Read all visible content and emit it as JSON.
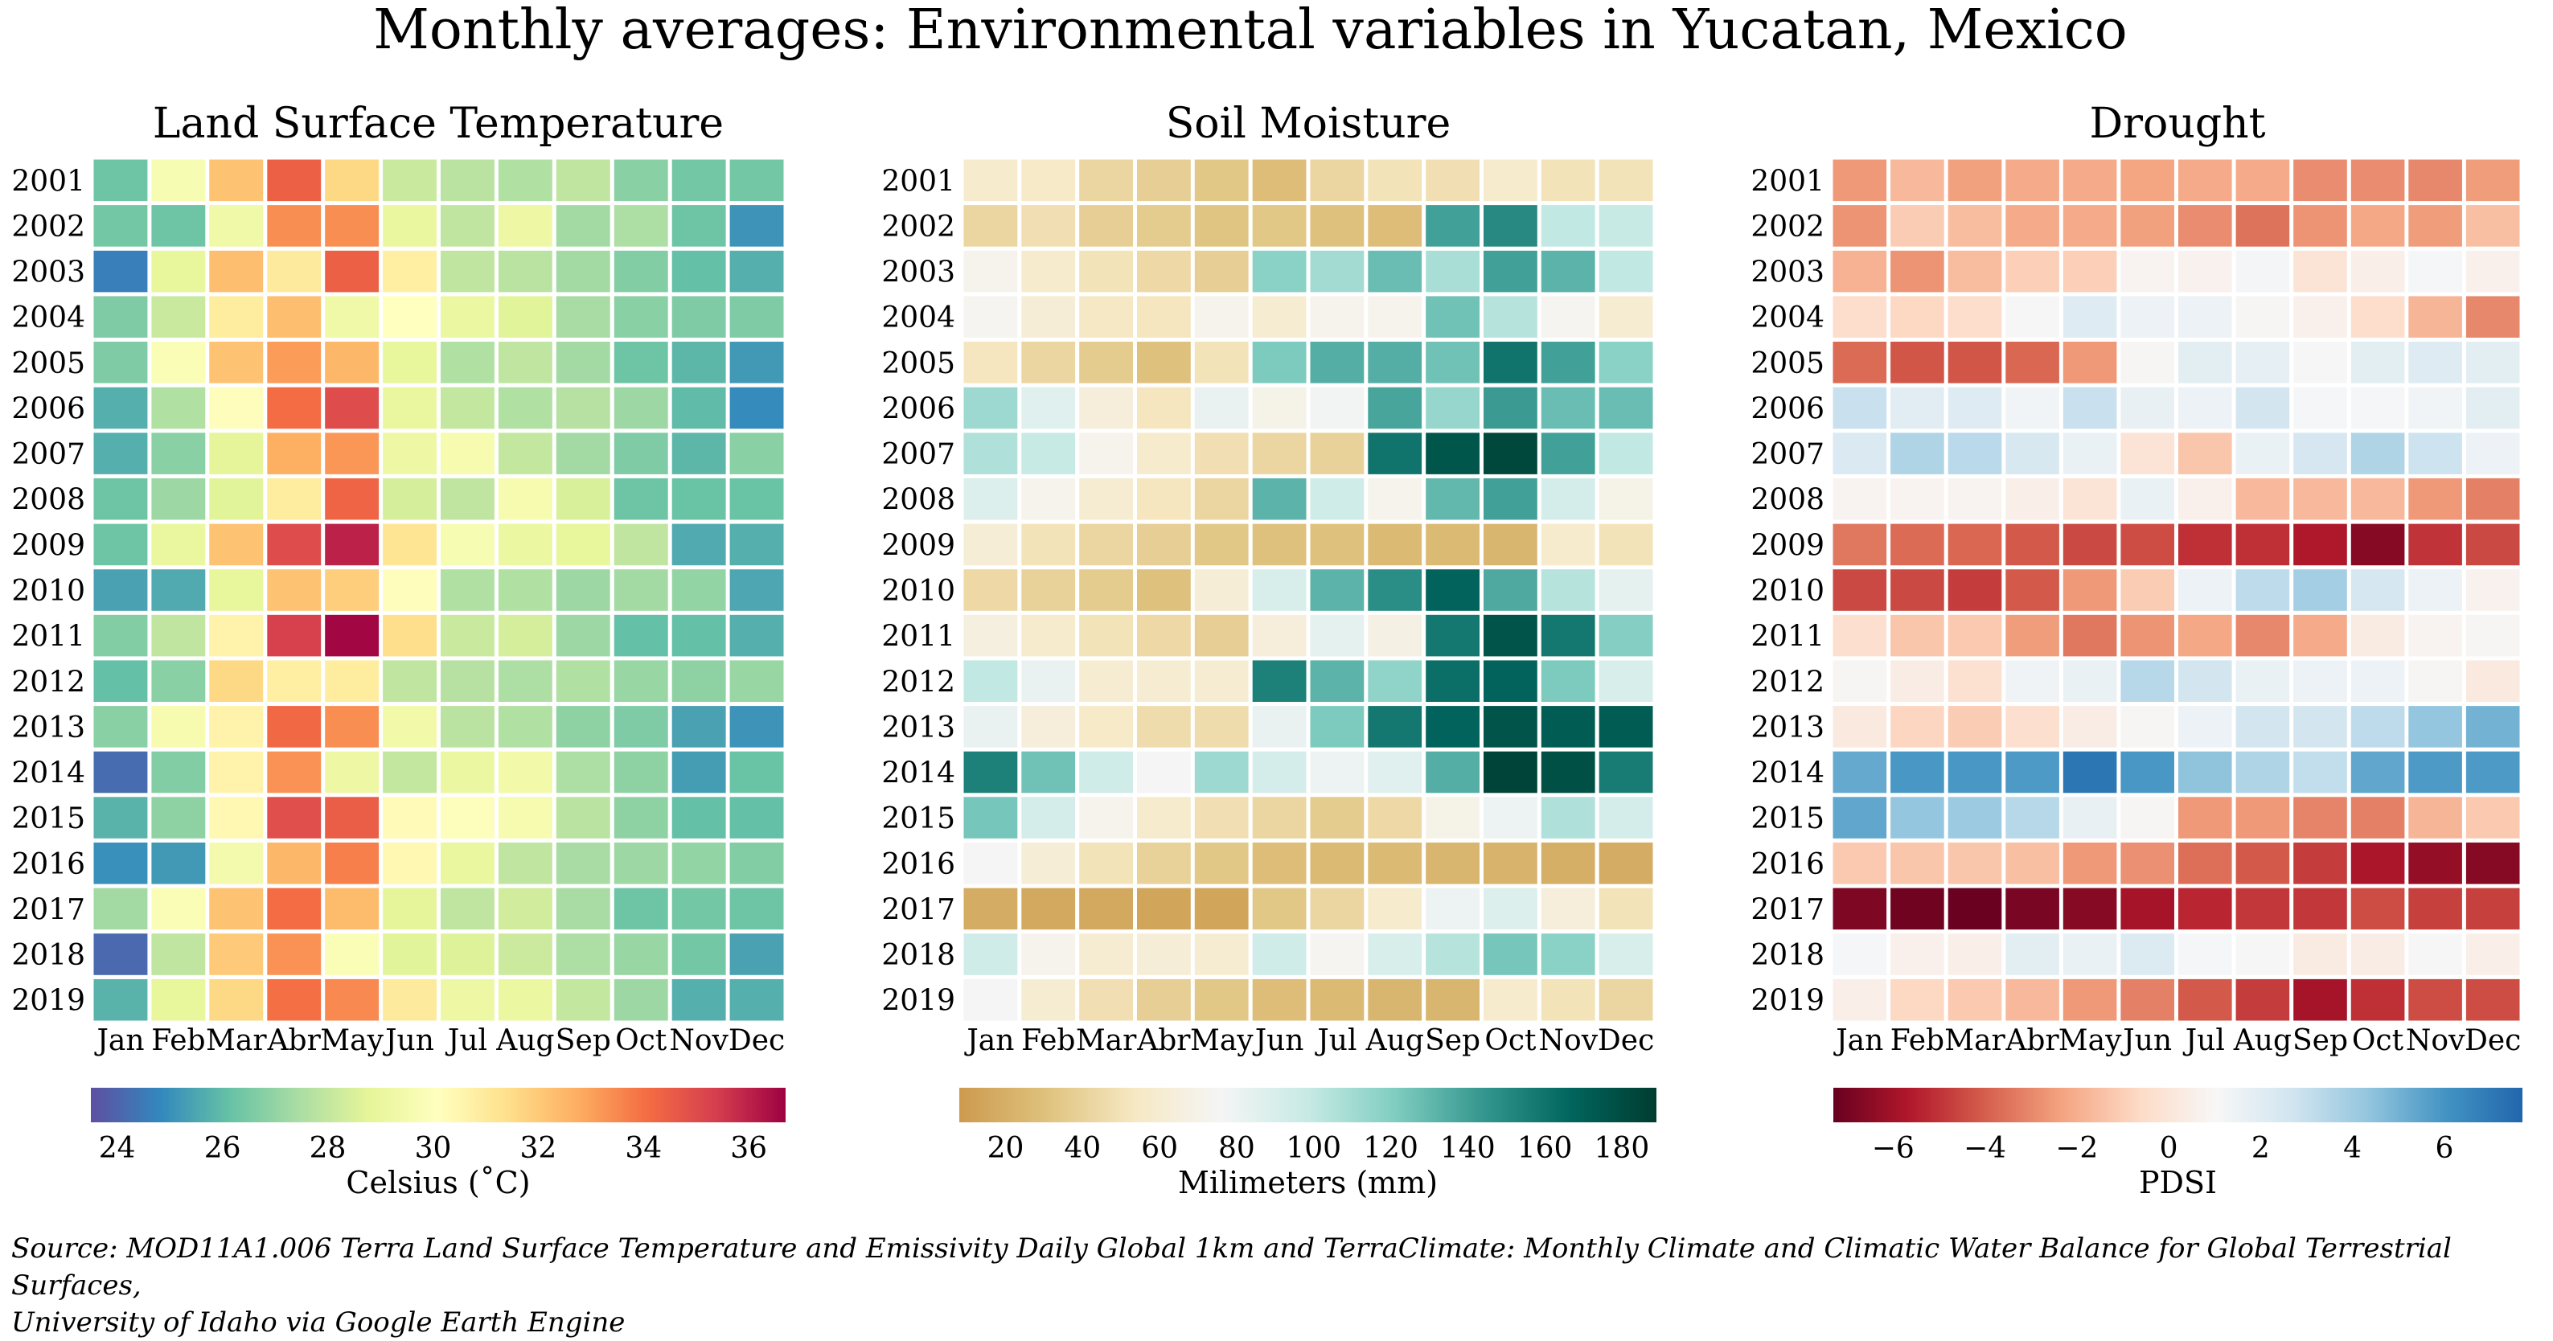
{
  "chart_data": {
    "title": "Monthly averages: Environmental variables in Yucatan, Mexico",
    "source": "Source: MOD11A1.006 Terra Land Surface Temperature and Emissivity Daily Global 1km and TerraClimate: Monthly Climate and Climatic Water Balance for Global Terrestrial Surfaces, University of Idaho via Google Earth Engine",
    "source_lines": [
      "Source: MOD11A1.006 Terra Land Surface Temperature and Emissivity Daily Global 1km and TerraClimate: Monthly Climate and Climatic Water Balance for Global Terrestrial Surfaces,",
      "University of Idaho via Google Earth Engine"
    ],
    "panels": [
      {
        "type": "heatmap",
        "title": "Land Surface Temperature",
        "colorbar_label": "Celsius (˚C)",
        "colormap": "Spectral_r",
        "colormap_stops": [
          "#5e4fa2",
          "#3288bd",
          "#66c2a5",
          "#abdda4",
          "#e6f598",
          "#ffffbf",
          "#fee08b",
          "#fdae61",
          "#f46d43",
          "#d53e4f",
          "#9e0142"
        ],
        "vmin": 23.5,
        "vmax": 36.7,
        "colorbar_ticks": [
          24,
          26,
          28,
          30,
          32,
          34,
          36
        ],
        "colorbar_ticklabels": [
          "24",
          "26",
          "28",
          "30",
          "32",
          "34",
          "36"
        ],
        "colorbar_range": [
          23.5,
          36.7
        ],
        "x_labels": [
          "Jan",
          "Feb",
          "Mar",
          "Abr",
          "May",
          "Jun",
          "Jul",
          "Aug",
          "Sep",
          "Oct",
          "Nov",
          "Dec"
        ],
        "y_labels": [
          "2001",
          "2002",
          "2003",
          "2004",
          "2005",
          "2006",
          "2007",
          "2008",
          "2009",
          "2010",
          "2011",
          "2012",
          "2013",
          "2014",
          "2015",
          "2016",
          "2017",
          "2018",
          "2019"
        ],
        "values": [
          [
            26.3,
            29.7,
            32.2,
            34.4,
            31.6,
            28.1,
            27.8,
            27.6,
            27.9,
            26.8,
            26.4,
            26.4
          ],
          [
            26.4,
            26.3,
            29.3,
            33.4,
            33.4,
            29.0,
            27.9,
            29.2,
            27.3,
            27.5,
            26.3,
            25.1
          ],
          [
            24.6,
            28.9,
            32.3,
            31.0,
            34.4,
            30.8,
            27.9,
            27.8,
            27.3,
            26.7,
            26.1,
            25.7
          ],
          [
            26.6,
            28.1,
            30.9,
            32.3,
            29.3,
            30.1,
            29.1,
            28.7,
            27.4,
            26.8,
            26.6,
            26.6
          ],
          [
            26.6,
            29.8,
            32.2,
            33.1,
            32.5,
            28.9,
            27.6,
            27.9,
            27.3,
            26.3,
            25.9,
            25.2
          ],
          [
            25.7,
            27.6,
            30.2,
            34.1,
            35.0,
            29.0,
            28.0,
            27.6,
            27.7,
            27.2,
            26.0,
            24.9
          ],
          [
            25.7,
            26.8,
            28.8,
            32.7,
            33.2,
            29.2,
            29.6,
            28.0,
            27.3,
            26.6,
            25.9,
            26.8
          ],
          [
            26.3,
            27.2,
            28.7,
            30.9,
            34.3,
            28.4,
            27.9,
            29.6,
            28.5,
            26.3,
            26.2,
            26.2
          ],
          [
            26.3,
            29.0,
            32.2,
            35.0,
            36.0,
            31.2,
            29.7,
            29.1,
            28.9,
            27.9,
            25.6,
            25.7
          ],
          [
            25.4,
            25.6,
            28.9,
            32.2,
            31.9,
            30.2,
            27.6,
            27.6,
            27.2,
            27.3,
            27.0,
            25.5
          ],
          [
            26.7,
            27.9,
            30.6,
            35.3,
            36.6,
            31.4,
            28.1,
            28.4,
            27.2,
            26.1,
            26.1,
            25.7
          ],
          [
            26.1,
            26.8,
            31.6,
            30.8,
            30.9,
            27.9,
            27.7,
            27.5,
            27.6,
            27.1,
            26.9,
            27.1
          ],
          [
            26.8,
            29.6,
            30.6,
            34.2,
            33.4,
            29.4,
            27.8,
            27.6,
            26.9,
            26.6,
            25.4,
            25.1
          ],
          [
            24.2,
            26.7,
            30.6,
            33.3,
            29.2,
            28.0,
            29.1,
            29.4,
            27.5,
            26.9,
            25.3,
            26.2
          ],
          [
            25.8,
            26.9,
            30.4,
            34.9,
            34.5,
            30.3,
            30.0,
            29.6,
            27.8,
            26.9,
            26.1,
            26.1
          ],
          [
            25.0,
            25.2,
            29.5,
            32.5,
            33.7,
            30.4,
            29.0,
            27.9,
            27.4,
            27.2,
            27.0,
            26.7
          ],
          [
            27.3,
            29.8,
            32.2,
            34.1,
            32.4,
            28.8,
            27.9,
            28.3,
            27.4,
            26.3,
            26.4,
            26.3
          ],
          [
            24.1,
            27.9,
            32.0,
            33.3,
            29.8,
            28.7,
            28.6,
            28.2,
            27.5,
            27.1,
            26.4,
            25.4
          ],
          [
            25.8,
            28.9,
            31.6,
            34.0,
            33.5,
            31.0,
            29.2,
            29.1,
            28.0,
            27.2,
            25.7,
            25.7
          ]
        ]
      },
      {
        "type": "heatmap",
        "title": "Soil Moisture",
        "colorbar_label": "Milimeters (mm)",
        "colormap": "BrBG",
        "colormap_stops": [
          "#cc9a4e",
          "#dfc27d",
          "#f6e8c3",
          "#f5f5f5",
          "#c7eae5",
          "#80cdc1",
          "#35978f",
          "#01665e",
          "#003c30"
        ],
        "vmin": 8,
        "vmax": 189,
        "colorbar_ticks": [
          20,
          40,
          60,
          80,
          100,
          120,
          140,
          160,
          180
        ],
        "colorbar_ticklabels": [
          "20",
          "40",
          "60",
          "80",
          "100",
          "120",
          "140",
          "160",
          "180"
        ],
        "colorbar_range": [
          8,
          189
        ],
        "x_labels": [
          "Jan",
          "Feb",
          "Mar",
          "Abr",
          "May",
          "Jun",
          "Jul",
          "Aug",
          "Sep",
          "Oct",
          "Nov",
          "Dec"
        ],
        "y_labels": [
          "2001",
          "2002",
          "2003",
          "2004",
          "2005",
          "2006",
          "2007",
          "2008",
          "2009",
          "2010",
          "2011",
          "2012",
          "2013",
          "2014",
          "2015",
          "2016",
          "2017",
          "2018",
          "2019"
        ],
        "values": [
          [
            58,
            56,
            42,
            38,
            34,
            28,
            42,
            50,
            48,
            58,
            50,
            50
          ],
          [
            42,
            48,
            38,
            36,
            32,
            34,
            30,
            28,
            140,
            150,
            100,
            98
          ],
          [
            72,
            58,
            50,
            44,
            38,
            118,
            110,
            128,
            108,
            140,
            132,
            100
          ],
          [
            74,
            62,
            54,
            52,
            72,
            60,
            72,
            72,
            126,
            104,
            74,
            60
          ],
          [
            52,
            42,
            36,
            30,
            50,
            122,
            134,
            134,
            126,
            160,
            140,
            118
          ],
          [
            112,
            86,
            64,
            52,
            82,
            70,
            78,
            138,
            114,
            142,
            128,
            128
          ],
          [
            106,
            98,
            72,
            58,
            48,
            42,
            40,
            160,
            175,
            183,
            140,
            100
          ],
          [
            88,
            72,
            60,
            52,
            42,
            132,
            94,
            72,
            130,
            140,
            92,
            70
          ],
          [
            62,
            50,
            42,
            38,
            34,
            30,
            30,
            26,
            26,
            24,
            58,
            50
          ],
          [
            44,
            40,
            36,
            30,
            62,
            90,
            132,
            148,
            168,
            136,
            104,
            84
          ],
          [
            66,
            58,
            50,
            44,
            38,
            64,
            84,
            68,
            158,
            176,
            158,
            120
          ],
          [
            100,
            82,
            60,
            60,
            60,
            154,
            132,
            116,
            162,
            168,
            122,
            90
          ],
          [
            82,
            64,
            56,
            46,
            46,
            82,
            122,
            158,
            168,
            176,
            172,
            172
          ],
          [
            154,
            126,
            94,
            76,
            112,
            92,
            80,
            86,
            134,
            185,
            178,
            156
          ],
          [
            124,
            92,
            72,
            58,
            48,
            42,
            36,
            44,
            70,
            80,
            106,
            92
          ],
          [
            76,
            62,
            50,
            40,
            34,
            28,
            26,
            26,
            24,
            22,
            20,
            18
          ],
          [
            18,
            16,
            16,
            14,
            14,
            34,
            42,
            58,
            80,
            88,
            64,
            50
          ],
          [
            94,
            72,
            60,
            62,
            60,
            94,
            74,
            90,
            104,
            124,
            118,
            90
          ],
          [
            76,
            60,
            48,
            38,
            34,
            28,
            26,
            24,
            24,
            58,
            50,
            42
          ]
        ]
      },
      {
        "type": "heatmap",
        "title": "Drought",
        "colorbar_label": "PDSI",
        "colormap": "RdBu",
        "colormap_stops": [
          "#67001f",
          "#b2182b",
          "#d6604d",
          "#f4a582",
          "#fddbc7",
          "#f7f7f7",
          "#d1e5f0",
          "#92c5de",
          "#4393c3",
          "#2166ac"
        ],
        "vmin": -7.3,
        "vmax": 7.7,
        "colorbar_ticks": [
          -6,
          -4,
          -2,
          0,
          2,
          4,
          6
        ],
        "colorbar_ticklabels": [
          "−6",
          "−4",
          "−2",
          "0",
          "2",
          "4",
          "6"
        ],
        "colorbar_range": [
          -7.3,
          7.7
        ],
        "x_labels": [
          "Jan",
          "Feb",
          "Mar",
          "Abr",
          "May",
          "Jun",
          "Jul",
          "Aug",
          "Sep",
          "Oct",
          "Nov",
          "Dec"
        ],
        "y_labels": [
          "2001",
          "2002",
          "2003",
          "2004",
          "2005",
          "2006",
          "2007",
          "2008",
          "2009",
          "2010",
          "2011",
          "2012",
          "2013",
          "2014",
          "2015",
          "2016",
          "2017",
          "2018",
          "2019"
        ],
        "values": [
          [
            -2.6,
            -1.7,
            -2.4,
            -2.1,
            -2.1,
            -2.3,
            -2.1,
            -2.1,
            -2.9,
            -2.9,
            -3.0,
            -2.5
          ],
          [
            -2.7,
            -1.1,
            -1.6,
            -2.1,
            -2.1,
            -2.4,
            -2.9,
            -3.5,
            -2.7,
            -2.2,
            -2.5,
            -1.5
          ],
          [
            -1.9,
            -2.7,
            -1.6,
            -1.0,
            -1.0,
            0.8,
            0.7,
            1.2,
            -0.1,
            0.5,
            1.1,
            0.6
          ],
          [
            -0.5,
            -0.7,
            -0.5,
            1.0,
            2.1,
            1.5,
            1.5,
            0.9,
            0.6,
            -0.5,
            -1.8,
            -3.0
          ],
          [
            -3.7,
            -4.2,
            -4.2,
            -3.8,
            -2.6,
            0.9,
            1.9,
            1.8,
            1.0,
            1.9,
            2.1,
            1.9
          ],
          [
            2.9,
            2.0,
            2.1,
            1.3,
            2.9,
            1.7,
            1.5,
            2.6,
            1.1,
            1.1,
            1.3,
            1.9
          ],
          [
            2.3,
            3.6,
            3.3,
            2.4,
            1.6,
            -0.1,
            -1.3,
            1.6,
            2.5,
            3.6,
            2.8,
            1.5
          ],
          [
            0.8,
            0.8,
            0.8,
            0.5,
            -0.1,
            1.6,
            0.6,
            -1.7,
            -1.7,
            -1.7,
            -2.6,
            -3.2
          ],
          [
            -3.4,
            -3.7,
            -3.8,
            -4.1,
            -4.5,
            -4.4,
            -5.1,
            -5.1,
            -5.7,
            -6.6,
            -5.0,
            -4.5
          ],
          [
            -4.5,
            -4.5,
            -4.8,
            -4.1,
            -2.6,
            -1.1,
            1.5,
            3.2,
            3.9,
            2.5,
            1.5,
            0.7
          ],
          [
            -0.4,
            -1.3,
            -1.2,
            -2.5,
            -3.4,
            -2.7,
            -2.2,
            -3.0,
            -2.1,
            0.3,
            0.8,
            0.9
          ],
          [
            0.9,
            0.4,
            -0.3,
            1.4,
            1.6,
            3.4,
            2.6,
            1.6,
            1.5,
            1.5,
            0.9,
            0.2
          ],
          [
            0.2,
            -0.8,
            -1.1,
            -0.4,
            0.4,
            0.9,
            1.5,
            2.6,
            2.6,
            3.2,
            4.3,
            5.0
          ],
          [
            5.3,
            5.9,
            5.9,
            5.8,
            7.1,
            5.9,
            4.4,
            3.6,
            3.1,
            5.4,
            5.8,
            5.8
          ],
          [
            5.4,
            4.3,
            4.1,
            3.4,
            1.7,
            0.9,
            -2.6,
            -2.6,
            -3.1,
            -3.2,
            -1.8,
            -1.2
          ],
          [
            -1.2,
            -1.3,
            -1.3,
            -1.5,
            -2.6,
            -2.8,
            -3.6,
            -4.1,
            -4.8,
            -5.8,
            -6.3,
            -6.6
          ],
          [
            -6.8,
            -7.1,
            -7.2,
            -6.9,
            -6.6,
            -5.9,
            -5.3,
            -4.9,
            -4.9,
            -4.4,
            -4.7,
            -4.7
          ],
          [
            1.1,
            0.6,
            0.5,
            1.9,
            1.6,
            2.2,
            1.1,
            1.0,
            0.3,
            0.4,
            1.0,
            0.5
          ],
          [
            0.5,
            -0.7,
            -1.2,
            -1.7,
            -2.6,
            -3.2,
            -4.1,
            -4.8,
            -5.9,
            -5.1,
            -4.4,
            -4.4
          ]
        ]
      }
    ]
  }
}
